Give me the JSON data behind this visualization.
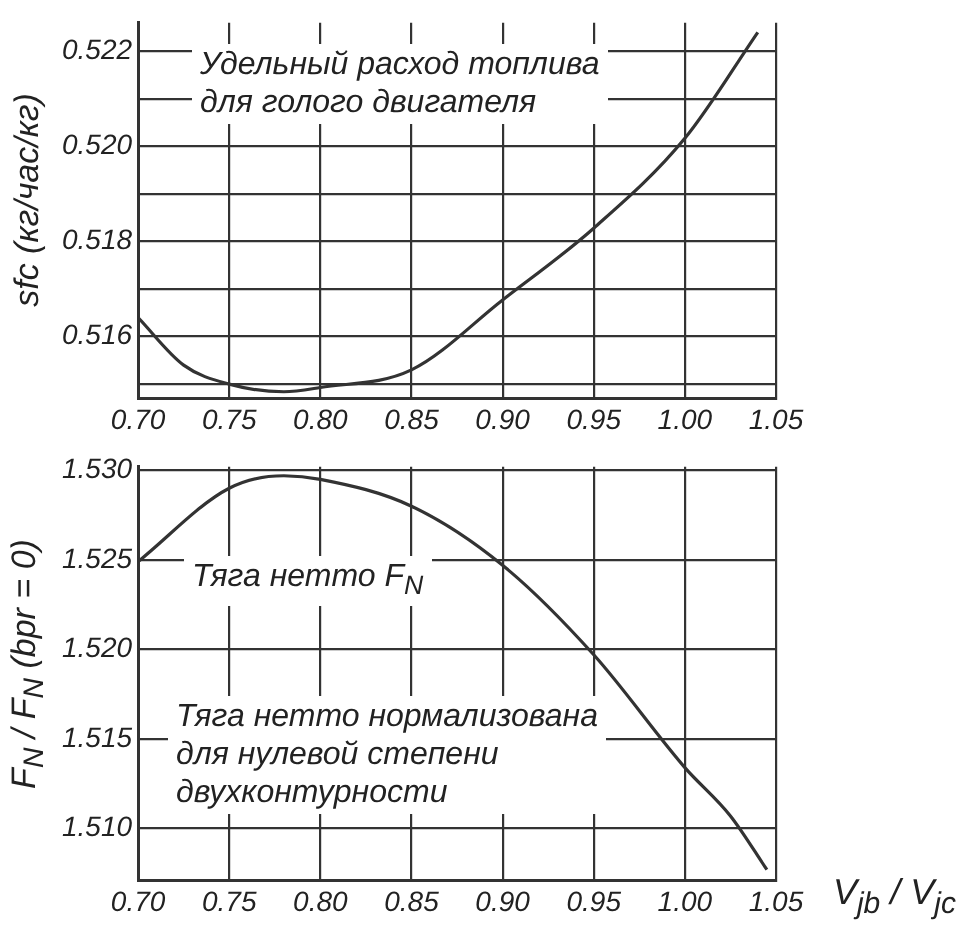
{
  "chart_data": [
    {
      "type": "line",
      "ylabel": "sfc (кг/час/кг)",
      "annotations": [
        "Удельный расход топлива\nдля голого двигателя"
      ],
      "xlim": [
        0.7,
        1.05
      ],
      "xticks": [
        {
          "value": 0.7,
          "label": "0.70"
        },
        0.75,
        {
          "value": 0.8,
          "label": "0.80"
        },
        0.85,
        {
          "value": 0.9,
          "label": "0.90"
        },
        0.95,
        {
          "value": 1.0,
          "label": "1.00"
        },
        1.05
      ],
      "ylim": [
        0.5147,
        0.5226
      ],
      "yticks": [
        {
          "value": 0.515,
          "label": null
        },
        0.516,
        {
          "value": 0.517,
          "label": null
        },
        0.518,
        {
          "value": 0.519,
          "label": null
        },
        {
          "value": 0.52,
          "label": "0.520"
        },
        {
          "value": 0.521,
          "label": null
        },
        0.522
      ],
      "grid": true,
      "legend": false,
      "marker": "none",
      "line_style": "solid",
      "series": [
        {
          "color": "#333333",
          "x": [
            0.7,
            0.725,
            0.75,
            0.78,
            0.8,
            0.85,
            0.9,
            0.95,
            1.0,
            1.04
          ],
          "values": [
            0.5164,
            0.5154,
            0.515,
            0.51484,
            0.51493,
            0.5153,
            0.51677,
            0.51828,
            0.52017,
            0.5224
          ]
        }
      ]
    },
    {
      "type": "line",
      "ylabel": "F$_{N}$ / F$_{N}$ (bpr = 0)",
      "xlabel": "V$_{jb}$ / V$_{jc}$",
      "annotations": [
        "Тяга нетто F$_{N}$",
        "Тяга нетто нормализована\nдля нулевой степени\nдвухконтурности"
      ],
      "xlim": [
        0.7,
        1.05
      ],
      "xticks": [
        {
          "value": 0.7,
          "label": "0.70"
        },
        0.75,
        {
          "value": 0.8,
          "label": "0.80"
        },
        0.85,
        {
          "value": 0.9,
          "label": "0.90"
        },
        0.95,
        {
          "value": 1.0,
          "label": "1.00"
        },
        1.05
      ],
      "ylim": [
        1.5071,
        1.5302
      ],
      "yticks": [
        {
          "value": 1.51,
          "label": "1.510"
        },
        1.515,
        {
          "value": 1.52,
          "label": "1.520"
        },
        1.525,
        {
          "value": 1.53,
          "label": "1.530"
        }
      ],
      "grid": true,
      "legend": false,
      "marker": "none",
      "line_style": "solid",
      "series": [
        {
          "color": "#333333",
          "x": [
            0.7,
            0.75,
            0.78,
            0.8,
            0.85,
            0.9,
            0.95,
            1.0,
            1.025,
            1.045
          ],
          "values": [
            1.5249,
            1.529,
            1.5297,
            1.5295,
            1.528,
            1.5247,
            1.5197,
            1.5134,
            1.5107,
            1.5077
          ]
        }
      ]
    }
  ]
}
